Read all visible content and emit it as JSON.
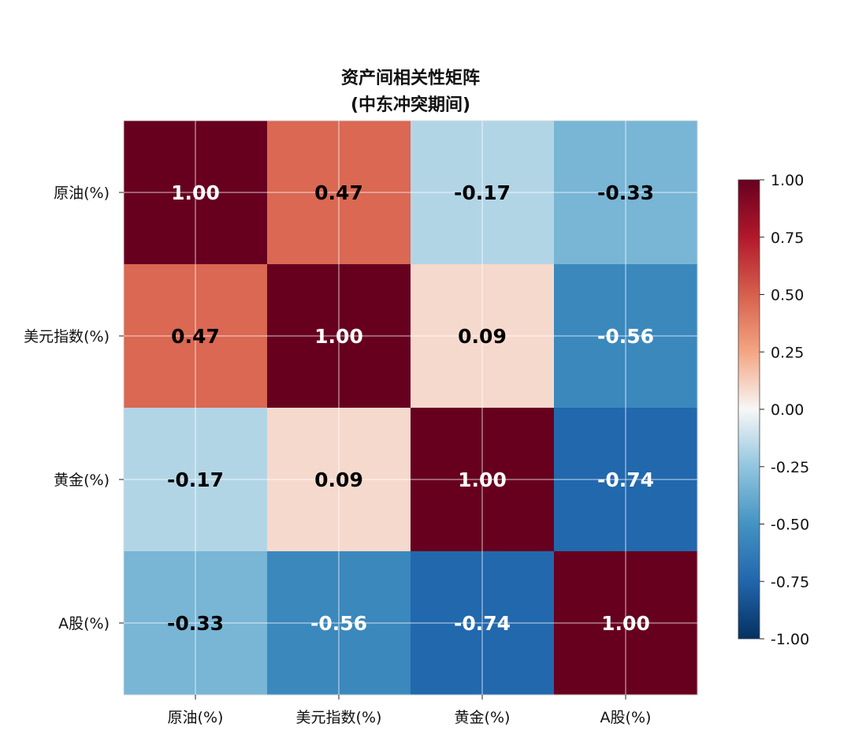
{
  "chart_data": {
    "type": "heatmap",
    "title": "资产间相关性矩阵",
    "subtitle": "(中东冲突期间)",
    "row_labels": [
      "原油(%)",
      "美元指数(%)",
      "黄金(%)",
      "A股(%)"
    ],
    "col_labels": [
      "原油(%)",
      "美元指数(%)",
      "黄金(%)",
      "A股(%)"
    ],
    "values": [
      [
        1.0,
        0.47,
        -0.17,
        -0.33
      ],
      [
        0.47,
        1.0,
        0.09,
        -0.56
      ],
      [
        -0.17,
        0.09,
        1.0,
        -0.74
      ],
      [
        -0.33,
        -0.56,
        -0.74,
        1.0
      ]
    ],
    "cell_text": [
      [
        "1.00",
        "0.47",
        "-0.17",
        "-0.33"
      ],
      [
        "0.47",
        "1.00",
        "0.09",
        "-0.56"
      ],
      [
        "-0.17",
        "0.09",
        "1.00",
        "-0.74"
      ],
      [
        "-0.33",
        "-0.56",
        "-0.74",
        "1.00"
      ]
    ],
    "colormap": "RdBu_r",
    "vmin": -1.0,
    "vmax": 1.0,
    "colorbar_ticks": [
      "1.00",
      "0.75",
      "0.50",
      "0.25",
      "0.00",
      "-0.25",
      "-0.50",
      "-0.75",
      "-1.00"
    ],
    "colorbar_tick_values": [
      1.0,
      0.75,
      0.5,
      0.25,
      0.0,
      -0.25,
      -0.5,
      -0.75,
      -1.0
    ],
    "grid": true,
    "colorbar_position": "right"
  }
}
